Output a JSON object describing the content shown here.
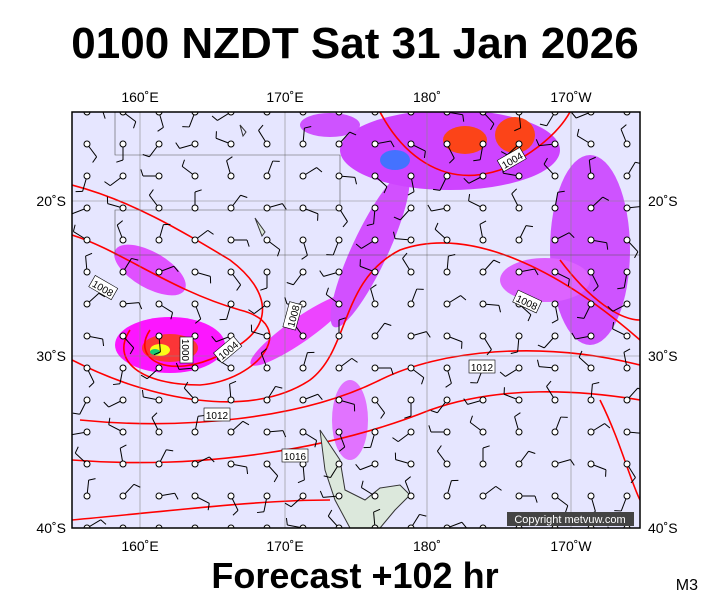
{
  "header": {
    "title": "0100 NZDT Sat 31 Jan 2026"
  },
  "footer": {
    "forecast": "Forecast +102 hr",
    "model": "M3"
  },
  "map": {
    "top_labels": [
      "160˚E",
      "170˚E",
      "180˚",
      "170˚W"
    ],
    "bottom_labels": [
      "160˚E",
      "170˚E",
      "180˚",
      "170˚W"
    ],
    "left_labels": [
      "20˚S",
      "30˚S",
      "40˚S"
    ],
    "right_labels": [
      "20˚S",
      "30˚S",
      "40˚S"
    ],
    "isobar_labels": [
      "1004",
      "1008",
      "1000",
      "1004",
      "1008",
      "1008",
      "1012",
      "1012",
      "1016"
    ],
    "copyright": "Copyright metvuw.com"
  }
}
